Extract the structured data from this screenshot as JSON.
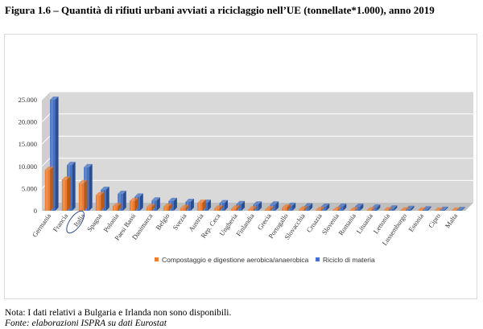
{
  "figure": {
    "title": "Figura 1.6 – Quantità di rifiuti urbani avviati a riciclaggio nell’UE (tonnellate*1.000), anno 2019",
    "note": "Nota: I dati relativi a Bulgaria e Irlanda non sono disponibili.",
    "source": "Fonte: elaborazioni ISPRA su dati Eurostat"
  },
  "colors": {
    "compost": "#ed7d31",
    "compost_dark": "#b85a1a",
    "riciclo": "#4472c4",
    "riciclo_dark": "#2a4d8f",
    "wall": "#d9d9d9",
    "floor": "#bfbfbf",
    "grid": "#ffffff",
    "highlight": "#2e4a8a"
  },
  "chart_data": {
    "type": "bar",
    "title": "",
    "xlabel": "",
    "ylabel": "",
    "ylim": [
      0,
      25000
    ],
    "yticks": [
      0,
      5000,
      10000,
      15000,
      20000,
      25000
    ],
    "ytick_labels": [
      "0",
      "5.000",
      "10.000",
      "15.000",
      "20.000",
      "25.000"
    ],
    "categories": [
      "Germania",
      "Francia",
      "Italia",
      "Spagna",
      "Polonia",
      "Paesi Bassi",
      "Danimarca",
      "Belgio",
      "Svezia",
      "Austria",
      "Rep. Ceca",
      "Ungheria",
      "Finlandia",
      "Grecia",
      "Portogallo",
      "Slovacchia",
      "Croazia",
      "Slovenia",
      "Romania",
      "Lituania",
      "Lettonia",
      "Lussemburgo",
      "Estonia",
      "Cipro",
      "Malta"
    ],
    "highlight_category": "Italia",
    "series": [
      {
        "name": "Compostaggio e digestione aerobica/anaerobica",
        "values": [
          9200,
          7000,
          6200,
          3500,
          1000,
          2200,
          800,
          900,
          600,
          1800,
          500,
          500,
          300,
          300,
          700,
          300,
          150,
          150,
          100,
          100,
          80,
          80,
          50,
          30,
          20
        ]
      },
      {
        "name": "Riciclo di materia",
        "values": [
          25000,
          10300,
          9800,
          4700,
          3800,
          3200,
          2300,
          2200,
          2000,
          1800,
          1700,
          1500,
          1400,
          1400,
          1100,
          1000,
          900,
          900,
          900,
          700,
          500,
          400,
          300,
          200,
          150
        ]
      }
    ],
    "legend_position": "bottom"
  }
}
